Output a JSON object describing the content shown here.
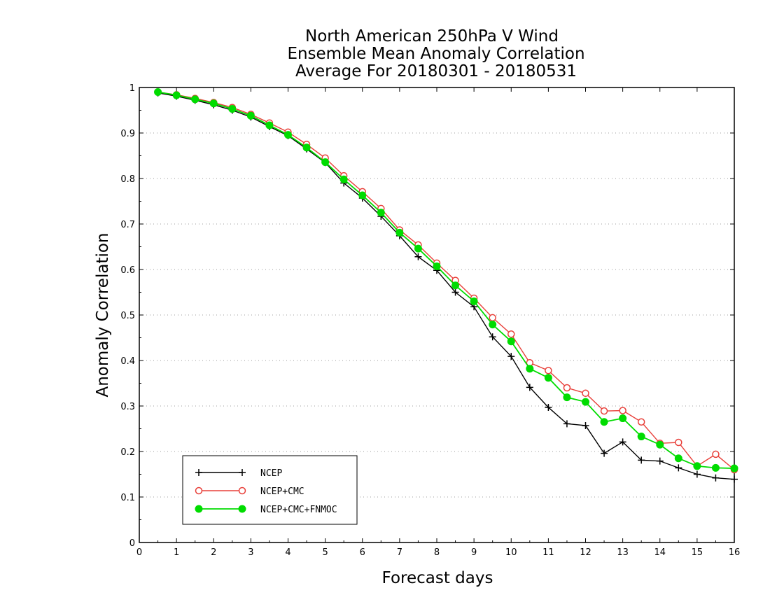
{
  "chart_data": {
    "type": "line",
    "title": [
      "North American 250hPa V Wind",
      "Ensemble Mean Anomaly Correlation",
      "Average For 20180301 - 20180531"
    ],
    "xlabel": "Forecast days",
    "ylabel": "Anomaly Correlation",
    "xlim": [
      0,
      16
    ],
    "ylim": [
      0,
      1
    ],
    "x_ticks": [
      0,
      1,
      2,
      3,
      4,
      5,
      6,
      7,
      8,
      9,
      10,
      11,
      12,
      13,
      14,
      15,
      16
    ],
    "y_ticks": [
      0,
      0.1,
      0.2,
      0.3,
      0.4,
      0.5,
      0.6,
      0.7,
      0.8,
      0.9,
      1
    ],
    "y_tick_labels": [
      "0",
      "0.1",
      "0.2",
      "0.3",
      "0.4",
      "0.5",
      "0.6",
      "0.7",
      "0.8",
      "0.9",
      "1"
    ],
    "grid": "horizontal-dotted",
    "legend_position": "bottom-left",
    "x": [
      0.5,
      1,
      1.5,
      2,
      2.5,
      3,
      3.5,
      4,
      4.5,
      5,
      5.5,
      6,
      6.5,
      7,
      7.5,
      8,
      8.5,
      9,
      9.5,
      10,
      10.5,
      11,
      11.5,
      12,
      12.5,
      13,
      13.5,
      14,
      14.5,
      15,
      15.5,
      16
    ],
    "series": [
      {
        "name": "NCEP",
        "color": "#000000",
        "marker": "plus",
        "values": [
          0.988,
          0.981,
          0.972,
          0.962,
          0.95,
          0.935,
          0.914,
          0.894,
          0.865,
          0.835,
          0.79,
          0.757,
          0.717,
          0.674,
          0.628,
          0.598,
          0.55,
          0.518,
          0.452,
          0.409,
          0.341,
          0.297,
          0.261,
          0.257,
          0.196,
          0.221,
          0.181,
          0.179,
          0.164,
          0.15,
          0.142,
          0.139
        ]
      },
      {
        "name": "NCEP+CMC",
        "color": "#e8403a",
        "marker": "open-circle",
        "values": [
          0.99,
          0.984,
          0.976,
          0.967,
          0.956,
          0.941,
          0.922,
          0.902,
          0.875,
          0.845,
          0.806,
          0.771,
          0.734,
          0.687,
          0.654,
          0.614,
          0.576,
          0.537,
          0.494,
          0.458,
          0.395,
          0.378,
          0.34,
          0.328,
          0.289,
          0.29,
          0.265,
          0.218,
          0.22,
          0.168,
          0.194,
          0.16
        ]
      },
      {
        "name": "NCEP+CMC+FNMOC",
        "color": "#00dc00",
        "marker": "filled-circle",
        "values": [
          0.99,
          0.983,
          0.974,
          0.965,
          0.953,
          0.938,
          0.917,
          0.896,
          0.868,
          0.836,
          0.798,
          0.763,
          0.725,
          0.681,
          0.646,
          0.607,
          0.565,
          0.53,
          0.479,
          0.442,
          0.382,
          0.362,
          0.319,
          0.309,
          0.265,
          0.273,
          0.233,
          0.215,
          0.185,
          0.168,
          0.164,
          0.163
        ]
      }
    ]
  }
}
